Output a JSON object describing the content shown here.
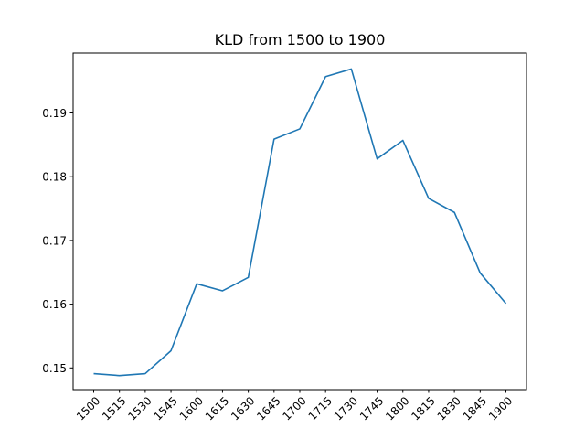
{
  "chart_data": {
    "type": "line",
    "title": "KLD from 1500 to 1900",
    "xlabel": "",
    "ylabel": "",
    "categories": [
      "1500",
      "1515",
      "1530",
      "1545",
      "1600",
      "1615",
      "1630",
      "1645",
      "1700",
      "1715",
      "1730",
      "1745",
      "1800",
      "1815",
      "1830",
      "1845",
      "1900"
    ],
    "series": [
      {
        "values": [
          0.1491,
          0.1488,
          0.1491,
          0.1527,
          0.1632,
          0.1621,
          0.1642,
          0.1859,
          0.1875,
          0.1957,
          0.1969,
          0.1828,
          0.1857,
          0.1766,
          0.1744,
          0.1649,
          0.1601
        ],
        "color": "#1f77b4"
      }
    ],
    "yticks": [
      "0.15",
      "0.16",
      "0.17",
      "0.18",
      "0.19"
    ],
    "ylim": [
      0.1466,
      0.1994
    ],
    "grid": false,
    "legend": "none"
  }
}
